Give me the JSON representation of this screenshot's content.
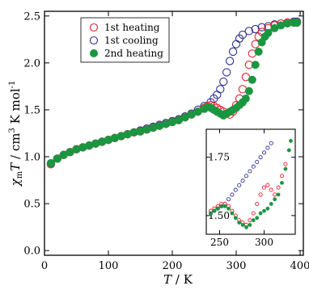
{
  "chart_data": {
    "type": "scatter",
    "xlabel": "T / K",
    "ylabel": "χmT / cm3 K mol-1",
    "xlim": [
      0,
      405
    ],
    "ylim": [
      -0.05,
      2.55
    ],
    "x_ticks": [
      0,
      100,
      200,
      300,
      400
    ],
    "y_ticks": [
      0.0,
      0.5,
      1.0,
      1.5,
      2.0,
      2.5
    ],
    "y_tick_labels": [
      "0.0",
      "0.5",
      "1.0",
      "1.5",
      "2.0",
      "2.5"
    ],
    "legend_position": "top-left",
    "colors": {
      "heating1": "#e8212b",
      "cooling1": "#2e3192",
      "heating2": "#1a9641"
    },
    "series": [
      {
        "name": "1st heating",
        "marker": "open-circle",
        "color": "#e8212b",
        "points": [
          [
            10,
            0.92
          ],
          [
            20,
            0.98
          ],
          [
            30,
            1.02
          ],
          [
            40,
            1.05
          ],
          [
            50,
            1.08
          ],
          [
            60,
            1.1
          ],
          [
            70,
            1.12
          ],
          [
            80,
            1.14
          ],
          [
            90,
            1.16
          ],
          [
            100,
            1.18
          ],
          [
            110,
            1.2
          ],
          [
            120,
            1.22
          ],
          [
            130,
            1.24
          ],
          [
            140,
            1.26
          ],
          [
            150,
            1.27
          ],
          [
            160,
            1.29
          ],
          [
            170,
            1.31
          ],
          [
            180,
            1.33
          ],
          [
            190,
            1.35
          ],
          [
            200,
            1.37
          ],
          [
            210,
            1.39
          ],
          [
            220,
            1.42
          ],
          [
            230,
            1.45
          ],
          [
            240,
            1.48
          ],
          [
            250,
            1.52
          ],
          [
            255,
            1.54
          ],
          [
            260,
            1.55
          ],
          [
            265,
            1.54
          ],
          [
            270,
            1.52
          ],
          [
            275,
            1.5
          ],
          [
            280,
            1.48
          ],
          [
            285,
            1.46
          ],
          [
            290,
            1.45
          ],
          [
            295,
            1.48
          ],
          [
            300,
            1.55
          ],
          [
            305,
            1.62
          ],
          [
            310,
            1.72
          ],
          [
            315,
            1.85
          ],
          [
            320,
            1.98
          ],
          [
            325,
            2.1
          ],
          [
            330,
            2.2
          ],
          [
            335,
            2.28
          ],
          [
            340,
            2.33
          ],
          [
            350,
            2.37
          ],
          [
            360,
            2.4
          ],
          [
            370,
            2.42
          ],
          [
            380,
            2.43
          ],
          [
            390,
            2.43
          ],
          [
            395,
            2.43
          ]
        ]
      },
      {
        "name": "1st cooling",
        "marker": "open-circle",
        "color": "#2e3192",
        "points": [
          [
            10,
            0.93
          ],
          [
            20,
            0.98
          ],
          [
            30,
            1.02
          ],
          [
            40,
            1.05
          ],
          [
            50,
            1.08
          ],
          [
            60,
            1.1
          ],
          [
            70,
            1.12
          ],
          [
            80,
            1.14
          ],
          [
            90,
            1.16
          ],
          [
            100,
            1.18
          ],
          [
            110,
            1.2
          ],
          [
            120,
            1.22
          ],
          [
            130,
            1.24
          ],
          [
            140,
            1.26
          ],
          [
            150,
            1.28
          ],
          [
            160,
            1.3
          ],
          [
            170,
            1.32
          ],
          [
            180,
            1.34
          ],
          [
            190,
            1.36
          ],
          [
            200,
            1.38
          ],
          [
            210,
            1.4
          ],
          [
            220,
            1.43
          ],
          [
            230,
            1.46
          ],
          [
            240,
            1.5
          ],
          [
            250,
            1.54
          ],
          [
            260,
            1.58
          ],
          [
            265,
            1.62
          ],
          [
            270,
            1.66
          ],
          [
            275,
            1.72
          ],
          [
            280,
            1.8
          ],
          [
            285,
            1.9
          ],
          [
            290,
            2.02
          ],
          [
            295,
            2.12
          ],
          [
            300,
            2.2
          ],
          [
            305,
            2.26
          ],
          [
            310,
            2.3
          ],
          [
            320,
            2.34
          ],
          [
            330,
            2.36
          ],
          [
            340,
            2.38
          ],
          [
            350,
            2.39
          ],
          [
            360,
            2.41
          ],
          [
            370,
            2.42
          ],
          [
            380,
            2.43
          ],
          [
            390,
            2.44
          ],
          [
            395,
            2.44
          ]
        ]
      },
      {
        "name": "2nd heating",
        "marker": "filled-circle",
        "color": "#1a9641",
        "points": [
          [
            10,
            0.93
          ],
          [
            20,
            0.98
          ],
          [
            30,
            1.02
          ],
          [
            40,
            1.05
          ],
          [
            50,
            1.08
          ],
          [
            60,
            1.1
          ],
          [
            70,
            1.12
          ],
          [
            80,
            1.14
          ],
          [
            90,
            1.16
          ],
          [
            100,
            1.18
          ],
          [
            110,
            1.2
          ],
          [
            120,
            1.22
          ],
          [
            130,
            1.24
          ],
          [
            140,
            1.26
          ],
          [
            150,
            1.27
          ],
          [
            160,
            1.29
          ],
          [
            170,
            1.31
          ],
          [
            180,
            1.33
          ],
          [
            190,
            1.35
          ],
          [
            200,
            1.37
          ],
          [
            210,
            1.39
          ],
          [
            220,
            1.42
          ],
          [
            230,
            1.45
          ],
          [
            240,
            1.48
          ],
          [
            250,
            1.51
          ],
          [
            255,
            1.53
          ],
          [
            260,
            1.52
          ],
          [
            265,
            1.5
          ],
          [
            270,
            1.48
          ],
          [
            275,
            1.46
          ],
          [
            280,
            1.44
          ],
          [
            285,
            1.46
          ],
          [
            290,
            1.48
          ],
          [
            295,
            1.5
          ],
          [
            300,
            1.52
          ],
          [
            305,
            1.55
          ],
          [
            310,
            1.58
          ],
          [
            315,
            1.62
          ],
          [
            320,
            1.7
          ],
          [
            325,
            1.82
          ],
          [
            330,
            1.98
          ],
          [
            335,
            2.12
          ],
          [
            340,
            2.22
          ],
          [
            345,
            2.28
          ],
          [
            350,
            2.32
          ],
          [
            360,
            2.37
          ],
          [
            370,
            2.4
          ],
          [
            380,
            2.42
          ],
          [
            390,
            2.43
          ],
          [
            395,
            2.43
          ]
        ]
      }
    ],
    "inset": {
      "xlim": [
        235,
        335
      ],
      "ylim": [
        1.42,
        1.87
      ],
      "x_ticks": [
        250,
        300
      ],
      "y_ticks": [
        1.5,
        1.75
      ],
      "y_tick_labels": [
        "1.50",
        "1.75"
      ],
      "series": [
        {
          "name": "1st heating",
          "points": [
            [
              240,
              1.52
            ],
            [
              244,
              1.53
            ],
            [
              248,
              1.54
            ],
            [
              252,
              1.55
            ],
            [
              256,
              1.55
            ],
            [
              260,
              1.54
            ],
            [
              264,
              1.52
            ],
            [
              268,
              1.5
            ],
            [
              272,
              1.48
            ],
            [
              276,
              1.47
            ],
            [
              280,
              1.46
            ],
            [
              284,
              1.48
            ],
            [
              288,
              1.51
            ],
            [
              292,
              1.55
            ],
            [
              296,
              1.59
            ],
            [
              300,
              1.62
            ],
            [
              304,
              1.63
            ],
            [
              308,
              1.61
            ],
            [
              312,
              1.59
            ],
            [
              316,
              1.62
            ],
            [
              320,
              1.67
            ],
            [
              324,
              1.72
            ]
          ]
        },
        {
          "name": "1st cooling",
          "points": [
            [
              240,
              1.51
            ],
            [
              244,
              1.52
            ],
            [
              248,
              1.53
            ],
            [
              252,
              1.54
            ],
            [
              256,
              1.55
            ],
            [
              260,
              1.57
            ],
            [
              264,
              1.59
            ],
            [
              268,
              1.61
            ],
            [
              272,
              1.63
            ],
            [
              276,
              1.65
            ],
            [
              280,
              1.67
            ],
            [
              284,
              1.69
            ],
            [
              288,
              1.71
            ],
            [
              292,
              1.73
            ],
            [
              296,
              1.75
            ],
            [
              300,
              1.77
            ],
            [
              304,
              1.79
            ],
            [
              308,
              1.81
            ]
          ]
        },
        {
          "name": "2nd heating",
          "points": [
            [
              240,
              1.51
            ],
            [
              244,
              1.52
            ],
            [
              248,
              1.53
            ],
            [
              252,
              1.54
            ],
            [
              256,
              1.54
            ],
            [
              260,
              1.53
            ],
            [
              264,
              1.51
            ],
            [
              268,
              1.49
            ],
            [
              272,
              1.47
            ],
            [
              276,
              1.46
            ],
            [
              280,
              1.45
            ],
            [
              284,
              1.46
            ],
            [
              288,
              1.48
            ],
            [
              292,
              1.49
            ],
            [
              296,
              1.51
            ],
            [
              300,
              1.52
            ],
            [
              304,
              1.53
            ],
            [
              308,
              1.55
            ],
            [
              312,
              1.57
            ],
            [
              316,
              1.59
            ],
            [
              320,
              1.64
            ],
            [
              324,
              1.7
            ],
            [
              328,
              1.78
            ],
            [
              330,
              1.82
            ]
          ]
        }
      ]
    }
  }
}
